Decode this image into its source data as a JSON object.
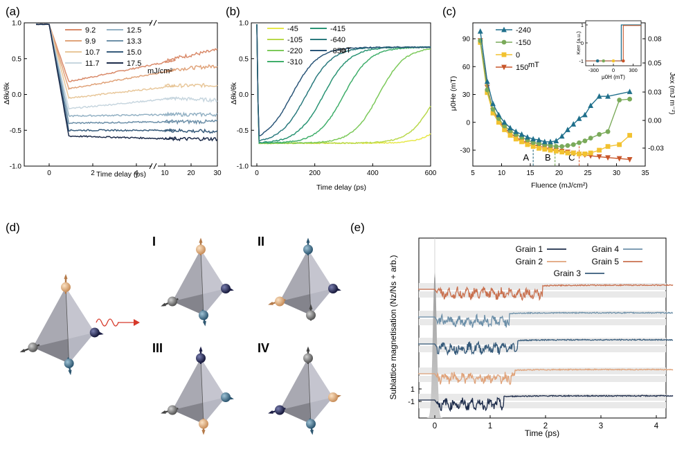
{
  "chart_data": [
    {
      "id": "a",
      "panel_label": "(a)",
      "type": "line",
      "xlabel": "Time delay (ps)",
      "ylabel": "Δθk/θk",
      "x_ticks_left": [
        "0",
        "2",
        "4"
      ],
      "x_ticks_right": [
        "10",
        "20",
        "30"
      ],
      "y_ticks": [
        "1.0",
        "0.5",
        "0.0",
        "-0.5",
        "-1.0"
      ],
      "ylim": [
        -1.0,
        1.0
      ],
      "legend_unit": "mJ/cm²",
      "series": [
        {
          "name": "9.2",
          "color": "#d98a6a",
          "min": 0.18,
          "end": 0.48,
          "far_end": 0.62
        },
        {
          "name": "9.9",
          "color": "#e0a37a",
          "min": 0.08,
          "end": 0.34,
          "far_end": 0.4
        },
        {
          "name": "10.7",
          "color": "#e8c79a",
          "min": -0.05,
          "end": 0.12,
          "far_end": 0.13
        },
        {
          "name": "11.7",
          "color": "#c7d6df",
          "min": -0.2,
          "end": -0.05,
          "far_end": -0.08
        },
        {
          "name": "12.5",
          "color": "#93b1c4",
          "min": -0.3,
          "end": -0.28,
          "far_end": -0.28
        },
        {
          "name": "13.3",
          "color": "#6c8fa8",
          "min": -0.4,
          "end": -0.38,
          "far_end": -0.38
        },
        {
          "name": "15.0",
          "color": "#355a7a",
          "min": -0.5,
          "end": -0.5,
          "far_end": -0.52
        },
        {
          "name": "17.5",
          "color": "#1c2b4a",
          "min": -0.58,
          "end": -0.62,
          "far_end": -0.62
        }
      ]
    },
    {
      "id": "b",
      "panel_label": "(b)",
      "type": "line",
      "xlabel": "Time delay (ps)",
      "ylabel": "Δθk/θk",
      "x_ticks": [
        "0",
        "200",
        "400",
        "600"
      ],
      "y_ticks": [
        "1.0",
        "0.5",
        "0.0",
        "-0.5",
        "-1.0"
      ],
      "xlim": [
        0,
        600
      ],
      "ylim": [
        -1.0,
        1.0
      ],
      "legend_unit": "mT",
      "series": [
        {
          "name": "-45",
          "color": "#e7e84a",
          "rise_mid": 700,
          "end": -0.17
        },
        {
          "name": "-105",
          "color": "#b8d84a",
          "rise_mid": 620,
          "end": 0.35
        },
        {
          "name": "-220",
          "color": "#7cc95a",
          "rise_mid": 420,
          "end": 0.65
        },
        {
          "name": "-310",
          "color": "#3fae6a",
          "rise_mid": 300,
          "end": 0.65
        },
        {
          "name": "-415",
          "color": "#2a9474",
          "rise_mid": 230,
          "end": 0.66
        },
        {
          "name": "-640",
          "color": "#2a7a7e",
          "rise_mid": 170,
          "end": 0.66
        },
        {
          "name": "-850",
          "color": "#2a5578",
          "rise_mid": 120,
          "end": 0.67
        }
      ]
    },
    {
      "id": "c",
      "panel_label": "(c)",
      "type": "line",
      "xlabel": "Fluence (mJ/cm²)",
      "ylabel": "μ0He (mT)",
      "y2label": "Jex (mJ m⁻²)",
      "x_ticks": [
        "5",
        "10",
        "15",
        "20",
        "25",
        "30",
        "35"
      ],
      "y_ticks": [
        "90",
        "60",
        "30",
        "0",
        "-30"
      ],
      "y2_ticks": [
        "0.08",
        "0.05",
        "0.03",
        "0.00",
        "-0.03"
      ],
      "xlim": [
        5,
        35
      ],
      "ylim": [
        -45,
        100
      ],
      "legend_unit": "mT",
      "vlines": [
        {
          "label": "A",
          "x": 15.5,
          "color": "#2a6a7e"
        },
        {
          "label": "B",
          "x": 19.3,
          "color": "#6ea24a"
        },
        {
          "label": "C",
          "x": 23.5,
          "color": "#e06030"
        }
      ],
      "series": [
        {
          "name": "-240",
          "color": "#1f6f8b",
          "marker": "triangle",
          "x": [
            6.3,
            7.5,
            8.5,
            9.5,
            10.5,
            11.5,
            12.5,
            13.5,
            14.5,
            15.5,
            16.5,
            17.5,
            18.5,
            19.5,
            20.5,
            21.5,
            22.5,
            23.5,
            24.5,
            25.5,
            27,
            28.5,
            32.3
          ],
          "y": [
            98,
            44,
            20,
            8,
            0,
            -6,
            -10,
            -13,
            -16,
            -18,
            -19,
            -21,
            -21,
            -20,
            -15,
            -8,
            -2,
            4,
            8,
            18,
            28,
            28,
            33
          ]
        },
        {
          "name": "-150",
          "color": "#7aaa5a",
          "marker": "circle",
          "x": [
            6.3,
            7.5,
            8.5,
            9.5,
            10.5,
            11.5,
            12.5,
            13.5,
            14.5,
            15.5,
            16.5,
            17.5,
            18.5,
            19.5,
            20.5,
            21.5,
            22.5,
            23.5,
            24.5,
            25.5,
            27,
            28.5,
            30.5,
            32.3
          ],
          "y": [
            88,
            35,
            14,
            4,
            -4,
            -9,
            -13,
            -16,
            -19,
            -22,
            -23,
            -24,
            -25,
            -26,
            -26,
            -25,
            -24,
            -22,
            -20,
            -17,
            -13,
            -10,
            24,
            25
          ]
        },
        {
          "name": "0",
          "color": "#f2c230",
          "marker": "square",
          "x": [
            6.3,
            7.5,
            8.5,
            9.5,
            10.5,
            11.5,
            12.5,
            13.5,
            14.5,
            15.5,
            16.5,
            17.5,
            18.5,
            19.5,
            20.5,
            21.5,
            22.5,
            23.5,
            24.5,
            25.5,
            27,
            28.5,
            30.5,
            32.3
          ],
          "y": [
            86,
            32,
            10,
            0,
            -8,
            -14,
            -18,
            -21,
            -24,
            -26,
            -28,
            -29,
            -30,
            -31,
            -32,
            -33,
            -33,
            -34,
            -34,
            -33,
            -30,
            -26,
            -24,
            -14
          ]
        },
        {
          "name": "150",
          "color": "#c8562a",
          "marker": "triangle-down",
          "x": [
            6.3,
            7.5,
            8.5,
            9.5,
            10.5,
            11.5,
            12.5,
            13.5,
            14.5,
            15.5,
            16.5,
            17.5,
            18.5,
            19.5,
            20.5,
            21.5,
            22.5,
            23.5,
            24.5,
            25.5,
            27,
            28.5,
            30.5,
            32.3
          ],
          "y": [
            88,
            38,
            13,
            2,
            -6,
            -12,
            -16,
            -20,
            -22,
            -24,
            -26,
            -27,
            -29,
            -30,
            -31,
            -32,
            -33,
            -34,
            -35,
            -36,
            -37,
            -38,
            -39,
            -40
          ]
        }
      ],
      "inset": {
        "xlabel": "μ0H (mT)",
        "ylabel": "Kerr (a.u.)",
        "x_ticks": [
          "-300",
          "0",
          "300"
        ],
        "y_ticks": [
          "1",
          "0",
          "-1"
        ],
        "xlim": [
          -420,
          420
        ],
        "ylim": [
          -1.3,
          1.3
        ]
      }
    },
    {
      "id": "e",
      "panel_label": "(e)",
      "type": "line",
      "xlabel": "Time (ps)",
      "ylabel": "Sublattice magnetisation (Nz/Ns + arb.)",
      "x_ticks": [
        "0",
        "1",
        "2",
        "3",
        "4"
      ],
      "y_ticks": [
        "1",
        "-1"
      ],
      "xlim": [
        -0.3,
        4.3
      ],
      "series": [
        {
          "name": "Grain 1",
          "color": "#1c2b4a",
          "offset": 0,
          "settle": 1.25
        },
        {
          "name": "Grain 2",
          "color": "#e0a37a",
          "offset": 1,
          "settle": 1.45
        },
        {
          "name": "Grain 3",
          "color": "#355a7a",
          "offset": 2,
          "settle": 1.5
        },
        {
          "name": "Grain 4",
          "color": "#6c8fa8",
          "offset": 3,
          "settle": 1.35
        },
        {
          "name": "Grain 5",
          "color": "#c9704e",
          "offset": 4,
          "settle": 1.95
        }
      ]
    }
  ],
  "panel_d": {
    "label": "(d)",
    "configs": [
      "I",
      "II",
      "III",
      "IV"
    ]
  }
}
